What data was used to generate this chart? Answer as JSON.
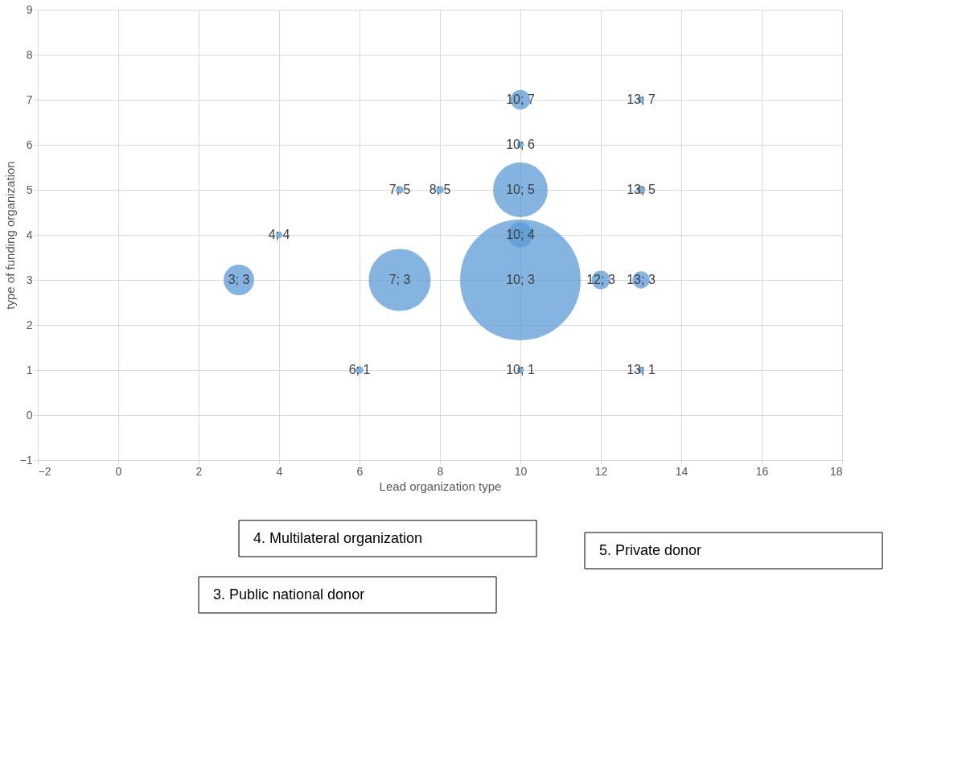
{
  "chart_data": {
    "type": "bubble",
    "xlabel": "Lead organization type",
    "ylabel": "type of funding organization",
    "xlim": [
      -2,
      18
    ],
    "xticks": [
      -2,
      0,
      2,
      4,
      6,
      8,
      10,
      12,
      14,
      16,
      18
    ],
    "ylim": [
      -1,
      9
    ],
    "yticks": [
      -1,
      0,
      1,
      2,
      3,
      4,
      5,
      6,
      7,
      8,
      9
    ],
    "grid": true,
    "legend": false,
    "series": [
      {
        "color": "#5b9bd5",
        "x": [
          10,
          7,
          3,
          12,
          13,
          10,
          10,
          10,
          10,
          13,
          7,
          8,
          13,
          6,
          10,
          13,
          4
        ],
        "values": [
          3,
          3,
          3,
          3,
          3,
          4,
          5,
          7,
          6,
          7,
          5,
          5,
          5,
          1,
          1,
          1,
          4
        ],
        "sizes": [
          1,
          0.26,
          0.06,
          0.021,
          0.018,
          0.04,
          0.2,
          0.024,
          0.002,
          0.002,
          0.003,
          0.003,
          0.004,
          0.003,
          0.002,
          0.002,
          0.002
        ],
        "value_labels": [
          "10; 3",
          "7; 3",
          "3; 3",
          "12; 3",
          "13; 3",
          "10; 4",
          "10; 5",
          "10; 7",
          "10; 6",
          "13; 7",
          "7; 5",
          "8; 5",
          "13; 5",
          "6; 1",
          "10; 1",
          "13; 1",
          "4; 4"
        ]
      }
    ],
    "annotations": [
      "4. Multilateral organization",
      "5. Private donor",
      "3. Public national donor"
    ]
  }
}
